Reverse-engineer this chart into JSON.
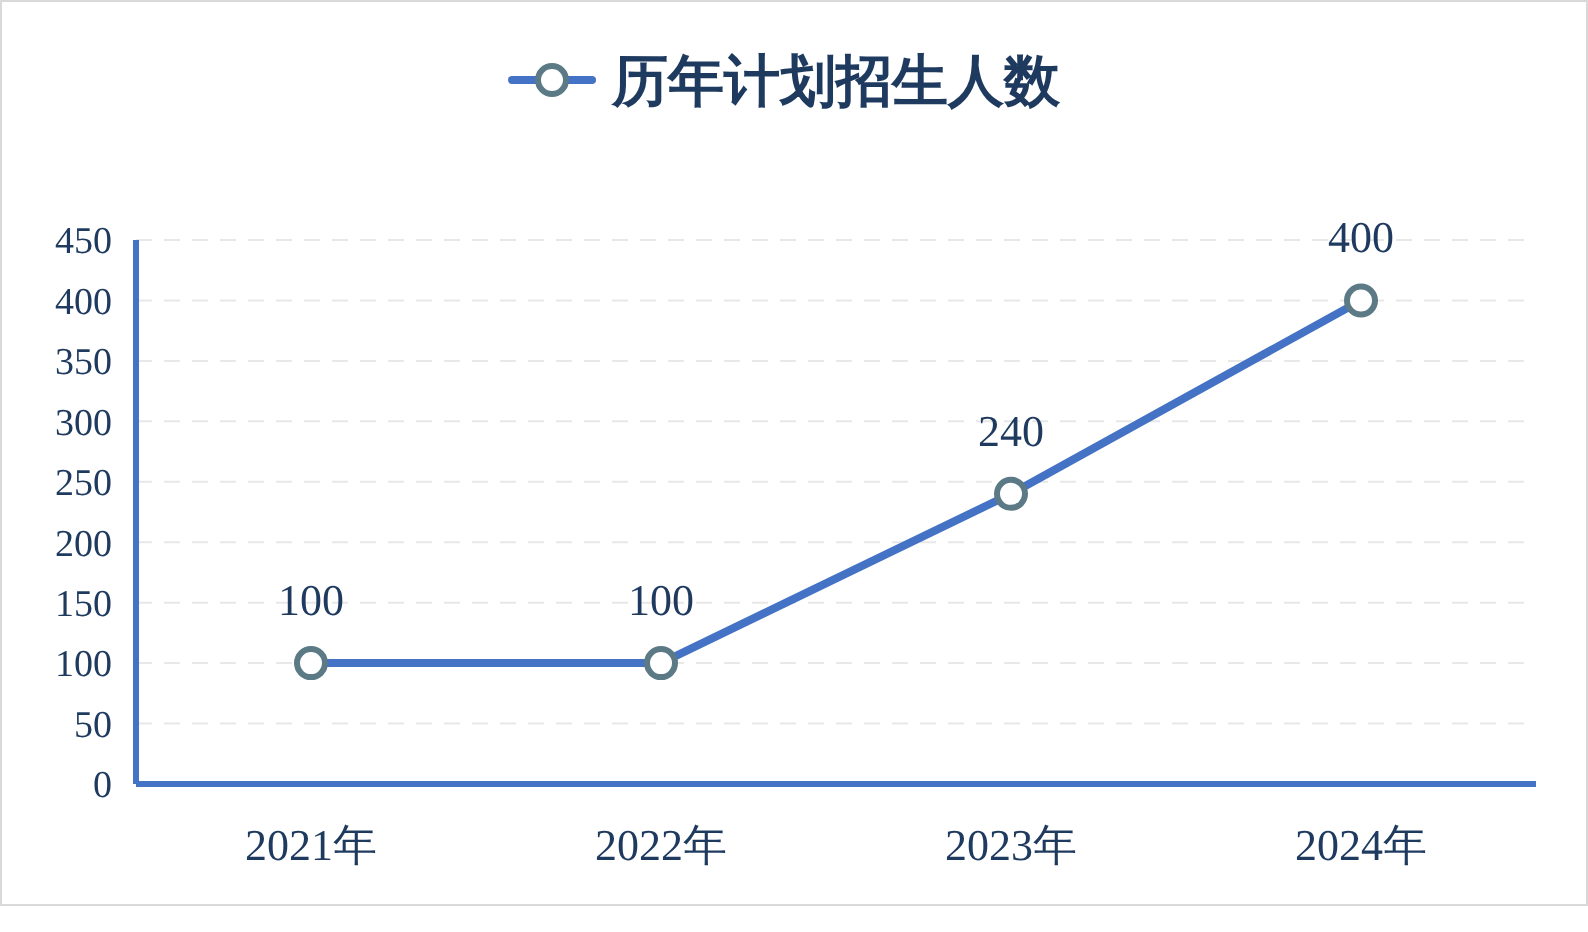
{
  "chart_data": {
    "type": "line",
    "categories": [
      "2021年",
      "2022年",
      "2023年",
      "2024年"
    ],
    "series": [
      {
        "name": "历年计划招生人数",
        "color": "#4472c4",
        "values": [
          100,
          100,
          240,
          400
        ]
      }
    ],
    "ylim": [
      0,
      450
    ],
    "yticks": [
      0,
      50,
      100,
      150,
      200,
      250,
      300,
      350,
      400,
      450
    ],
    "grid": "y",
    "legend": "top",
    "marker": "circle",
    "line_style": "solid",
    "data_labels": true
  }
}
